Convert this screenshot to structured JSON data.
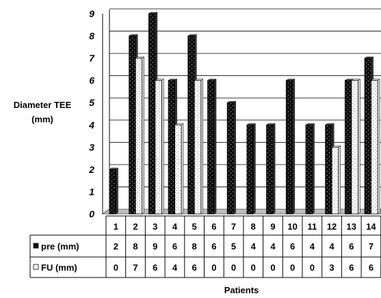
{
  "chart_data": {
    "type": "bar",
    "title": "",
    "ylabel": "Diameter TEE (mm)",
    "ylabel_lines": [
      "Diameter TEE",
      "(mm)"
    ],
    "xlabel": "Patients",
    "ylim": [
      0,
      9
    ],
    "yticks": [
      "0",
      "1",
      "2",
      "3",
      "4",
      "5",
      "6",
      "7",
      "8",
      "9"
    ],
    "categories": [
      "1",
      "2",
      "3",
      "4",
      "5",
      "6",
      "7",
      "8",
      "9",
      "10",
      "11",
      "12",
      "13",
      "14"
    ],
    "series": [
      {
        "name": "pre (mm)",
        "values": [
          2,
          8,
          9,
          6,
          8,
          6,
          5,
          4,
          4,
          6,
          4,
          4,
          6,
          7
        ],
        "color": "#111111"
      },
      {
        "name": "FU (mm)",
        "values": [
          0,
          7,
          6,
          4,
          6,
          0,
          0,
          0,
          0,
          0,
          0,
          3,
          6,
          6
        ],
        "color": "#ffffff"
      }
    ],
    "grid": true,
    "legend": "data-table"
  }
}
